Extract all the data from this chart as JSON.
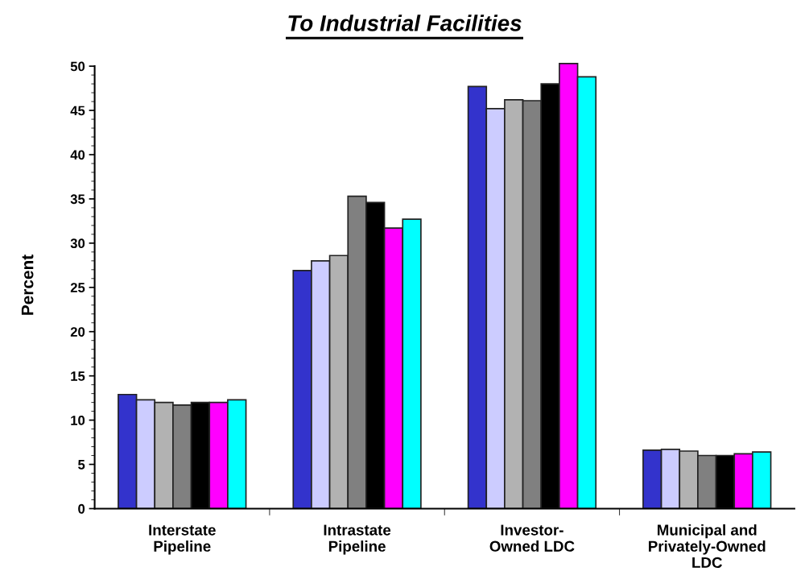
{
  "chart_data": {
    "type": "bar",
    "title": "To Industrial Facilities",
    "ylabel": "Percent",
    "categories": [
      "Interstate\nPipeline",
      "Intrastate\nPipeline",
      "Investor-\nOwned LDC",
      "Municipal and\nPrivately-Owned\nLDC"
    ],
    "series": [
      {
        "color": "#3333cc",
        "values": [
          12.9,
          26.9,
          47.7,
          6.6
        ]
      },
      {
        "color": "#ccccff",
        "values": [
          12.3,
          28.0,
          45.2,
          6.7
        ]
      },
      {
        "color": "#b2b2b2",
        "values": [
          12.0,
          28.6,
          46.2,
          6.5
        ]
      },
      {
        "color": "#808080",
        "values": [
          11.7,
          35.3,
          46.1,
          6.0
        ]
      },
      {
        "color": "#000000",
        "values": [
          12.0,
          34.6,
          48.0,
          6.0
        ]
      },
      {
        "color": "#ff00ff",
        "values": [
          12.0,
          31.7,
          50.3,
          6.2
        ]
      },
      {
        "color": "#00ffff",
        "values": [
          12.3,
          32.7,
          48.8,
          6.4
        ]
      }
    ],
    "ylim": [
      0,
      50.5
    ],
    "yticks": [
      0,
      5,
      10,
      15,
      20,
      25,
      30,
      35,
      40,
      45,
      50
    ],
    "grid": false
  }
}
